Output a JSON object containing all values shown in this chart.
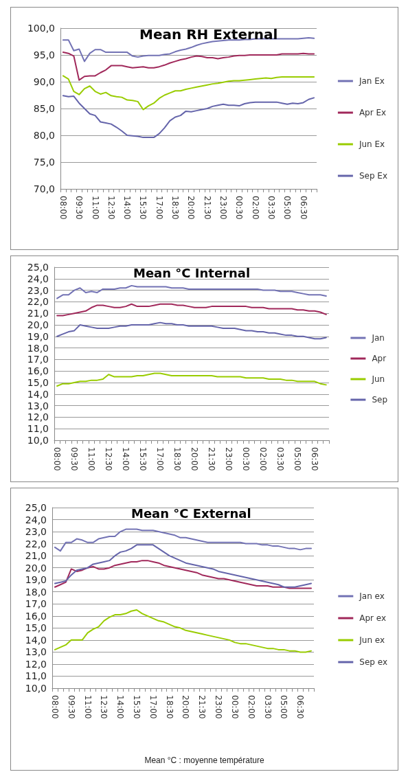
{
  "chart_data": [
    {
      "type": "line",
      "title": "Mean RH External",
      "categories": [
        "08:00",
        null,
        null,
        "09:30",
        null,
        null,
        "11:00",
        null,
        null,
        "12:30",
        null,
        null,
        "14:00",
        null,
        null,
        "15:30",
        null,
        null,
        "17:00",
        null,
        null,
        "18:30",
        null,
        null,
        "20:00",
        null,
        null,
        "21:30",
        null,
        null,
        "23:00",
        null,
        null,
        "00:30",
        null,
        null,
        "02:00",
        null,
        null,
        "03:30",
        null,
        null,
        "05:00",
        null,
        null,
        "06:30",
        null,
        null
      ],
      "series": [
        {
          "name": "Jan Ex",
          "color": "#7272b4",
          "values": [
            97.8,
            97.8,
            95.8,
            96.1,
            93.8,
            95.3,
            96,
            96,
            95.5,
            95.5,
            95.5,
            95.5,
            95.5,
            94.8,
            94.6,
            94.8,
            94.9,
            94.9,
            94.9,
            95.1,
            95.2,
            95.6,
            95.9,
            96.1,
            96.4,
            96.8,
            97.1,
            97.3,
            97.5,
            97.6,
            97.7,
            97.8,
            97.8,
            97.8,
            97.9,
            97.9,
            98,
            98,
            98,
            98,
            98,
            98,
            98,
            98,
            98,
            98.1,
            98.2,
            98.1
          ]
        },
        {
          "name": "Apr Ex",
          "color": "#a0285a",
          "values": [
            95.5,
            95.3,
            94.8,
            90.3,
            91,
            91.1,
            91.1,
            91.7,
            92.2,
            93,
            93,
            93,
            92.8,
            92.6,
            92.7,
            92.8,
            92.6,
            92.6,
            92.8,
            93.1,
            93.5,
            93.8,
            94.1,
            94.3,
            94.6,
            94.8,
            94.7,
            94.5,
            94.5,
            94.3,
            94.5,
            94.6,
            94.8,
            94.9,
            94.9,
            95,
            95,
            95,
            95,
            95,
            95,
            95.2,
            95.2,
            95.2,
            95.2,
            95.3,
            95.2,
            95.2
          ]
        },
        {
          "name": "Jun Ex",
          "color": "#99cc00",
          "values": [
            91.1,
            90.5,
            88.2,
            87.6,
            88.7,
            89.2,
            88.2,
            87.7,
            88,
            87.4,
            87.2,
            87.1,
            86.6,
            86.5,
            86.3,
            84.8,
            85.5,
            86,
            86.9,
            87.5,
            87.9,
            88.3,
            88.3,
            88.6,
            88.8,
            89,
            89.2,
            89.4,
            89.6,
            89.7,
            89.9,
            90.1,
            90.2,
            90.2,
            90.3,
            90.4,
            90.5,
            90.6,
            90.7,
            90.6,
            90.8,
            90.9,
            90.9,
            90.9,
            90.9,
            90.9,
            90.9,
            90.9
          ]
        },
        {
          "name": "Sep Ex",
          "color": "#6464aa",
          "values": [
            87.4,
            87.2,
            87.3,
            86,
            85,
            84,
            83.7,
            82.5,
            82.3,
            82.1,
            81.5,
            80.8,
            80,
            79.9,
            79.8,
            79.6,
            79.6,
            79.6,
            80.3,
            81.4,
            82.7,
            83.4,
            83.7,
            84.5,
            84.4,
            84.6,
            84.8,
            85,
            85.4,
            85.6,
            85.8,
            85.6,
            85.6,
            85.5,
            85.9,
            86.1,
            86.2,
            86.2,
            86.2,
            86.2,
            86.2,
            86,
            85.8,
            86,
            85.9,
            86.1,
            86.7,
            87
          ]
        }
      ],
      "ylim": [
        70,
        100
      ],
      "yticks": [
        {
          "value": 70,
          "label": "70,0"
        },
        {
          "value": 75,
          "label": "75,0"
        },
        {
          "value": 80,
          "label": "80,0"
        },
        {
          "value": 85,
          "label": "85,0"
        },
        {
          "value": 90,
          "label": "90,0"
        },
        {
          "value": 95,
          "label": "95,0"
        },
        {
          "value": 100,
          "label": "100,0"
        }
      ],
      "grid": "y",
      "legend": "right",
      "marker": "none",
      "line_style": "solid"
    },
    {
      "type": "line",
      "title": "Mean °C Internal",
      "categories": [
        "08:00",
        null,
        null,
        "09:30",
        null,
        null,
        "11:00",
        null,
        null,
        "12:30",
        null,
        null,
        "14:00",
        null,
        null,
        "15:30",
        null,
        null,
        "17:00",
        null,
        null,
        "18:30",
        null,
        null,
        "20:00",
        null,
        null,
        "21:30",
        null,
        null,
        "23:00",
        null,
        null,
        "00:30",
        null,
        null,
        "02:00",
        null,
        null,
        "03:30",
        null,
        null,
        "05:00",
        null,
        null,
        "06:30",
        null,
        null
      ],
      "series": [
        {
          "name": "Jan",
          "color": "#7272b4",
          "values": [
            22.3,
            22.6,
            22.6,
            23,
            23.2,
            22.8,
            22.9,
            22.8,
            23.1,
            23.1,
            23.1,
            23.2,
            23.2,
            23.4,
            23.3,
            23.3,
            23.3,
            23.3,
            23.3,
            23.3,
            23.2,
            23.2,
            23.2,
            23.1,
            23.1,
            23.1,
            23.1,
            23.1,
            23.1,
            23.1,
            23.1,
            23.1,
            23.1,
            23.1,
            23.1,
            23.1,
            23,
            23,
            23,
            22.9,
            22.9,
            22.9,
            22.8,
            22.7,
            22.6,
            22.6,
            22.6,
            22.5
          ]
        },
        {
          "name": "Apr",
          "color": "#a0285a",
          "values": [
            20.8,
            20.8,
            20.9,
            21,
            21.1,
            21.2,
            21.5,
            21.7,
            21.7,
            21.6,
            21.5,
            21.5,
            21.6,
            21.8,
            21.6,
            21.6,
            21.6,
            21.7,
            21.8,
            21.8,
            21.8,
            21.7,
            21.7,
            21.6,
            21.5,
            21.5,
            21.5,
            21.6,
            21.6,
            21.6,
            21.6,
            21.6,
            21.6,
            21.6,
            21.5,
            21.5,
            21.5,
            21.4,
            21.4,
            21.4,
            21.4,
            21.4,
            21.3,
            21.3,
            21.2,
            21.2,
            21.1,
            20.9
          ]
        },
        {
          "name": "Jun",
          "color": "#99cc00",
          "values": [
            14.7,
            14.9,
            14.9,
            15,
            15.1,
            15.1,
            15.2,
            15.2,
            15.3,
            15.7,
            15.5,
            15.5,
            15.5,
            15.5,
            15.6,
            15.6,
            15.7,
            15.8,
            15.8,
            15.7,
            15.6,
            15.6,
            15.6,
            15.6,
            15.6,
            15.6,
            15.6,
            15.6,
            15.5,
            15.5,
            15.5,
            15.5,
            15.5,
            15.4,
            15.4,
            15.4,
            15.4,
            15.3,
            15.3,
            15.3,
            15.2,
            15.2,
            15.1,
            15.1,
            15.1,
            15.1,
            14.9,
            14.8
          ]
        },
        {
          "name": "Sep",
          "color": "#6464aa",
          "values": [
            19,
            19.2,
            19.4,
            19.5,
            20,
            19.9,
            19.8,
            19.7,
            19.7,
            19.7,
            19.8,
            19.9,
            19.9,
            20,
            20,
            20,
            20,
            20.1,
            20.2,
            20.1,
            20.1,
            20,
            20,
            19.9,
            19.9,
            19.9,
            19.9,
            19.9,
            19.8,
            19.7,
            19.7,
            19.7,
            19.6,
            19.5,
            19.5,
            19.4,
            19.4,
            19.3,
            19.3,
            19.2,
            19.1,
            19.1,
            19,
            19,
            18.9,
            18.8,
            18.8,
            18.9
          ]
        }
      ],
      "ylim": [
        10,
        25
      ],
      "yticks": [
        {
          "value": 10,
          "label": "10,0"
        },
        {
          "value": 11,
          "label": "11,0"
        },
        {
          "value": 12,
          "label": "12,0"
        },
        {
          "value": 13,
          "label": "13,0"
        },
        {
          "value": 14,
          "label": "14,0"
        },
        {
          "value": 15,
          "label": "15,0"
        },
        {
          "value": 16,
          "label": "16,0"
        },
        {
          "value": 17,
          "label": "17,0"
        },
        {
          "value": 18,
          "label": "18,0"
        },
        {
          "value": 19,
          "label": "19,0"
        },
        {
          "value": 20,
          "label": "20,0"
        },
        {
          "value": 21,
          "label": "21,0"
        },
        {
          "value": 22,
          "label": "22,0"
        },
        {
          "value": 23,
          "label": "23,0"
        },
        {
          "value": 24,
          "label": "24,0"
        },
        {
          "value": 25,
          "label": "25,0"
        }
      ],
      "grid": "y",
      "legend": "right",
      "marker": "none",
      "line_style": "solid"
    },
    {
      "type": "line",
      "title": "Mean °C External",
      "categories": [
        "08:00",
        null,
        null,
        "09:30",
        null,
        null,
        "11:00",
        null,
        null,
        "12:30",
        null,
        null,
        "14:00",
        null,
        null,
        "15:30",
        null,
        null,
        "17:00",
        null,
        null,
        "18:30",
        null,
        null,
        "20:00",
        null,
        null,
        "21:30",
        null,
        null,
        "23:00",
        null,
        null,
        "00:30",
        null,
        null,
        "02:00",
        null,
        null,
        "03:30",
        null,
        null,
        "05:00",
        null,
        null,
        "06:30",
        null,
        null
      ],
      "series": [
        {
          "name": "Jan ex",
          "color": "#7272b4",
          "values": [
            21.7,
            21.4,
            22.1,
            22.1,
            22.4,
            22.3,
            22.1,
            22.1,
            22.4,
            22.5,
            22.6,
            22.6,
            23,
            23.2,
            23.2,
            23.2,
            23.1,
            23.1,
            23.1,
            23,
            22.9,
            22.8,
            22.7,
            22.5,
            22.5,
            22.4,
            22.3,
            22.2,
            22.1,
            22.1,
            22.1,
            22.1,
            22.1,
            22.1,
            22.1,
            22,
            22,
            22,
            21.9,
            21.9,
            21.8,
            21.8,
            21.7,
            21.6,
            21.6,
            21.5,
            21.6,
            21.6
          ]
        },
        {
          "name": "Apr ex",
          "color": "#a0285a",
          "values": [
            18.4,
            18.6,
            18.8,
            19.9,
            19.7,
            19.8,
            20,
            20.1,
            19.9,
            19.9,
            20,
            20.2,
            20.3,
            20.4,
            20.5,
            20.5,
            20.6,
            20.6,
            20.5,
            20.4,
            20.2,
            20.1,
            20,
            19.9,
            19.8,
            19.7,
            19.6,
            19.4,
            19.3,
            19.2,
            19.1,
            19.1,
            19,
            18.9,
            18.8,
            18.7,
            18.6,
            18.5,
            18.5,
            18.5,
            18.4,
            18.4,
            18.4,
            18.3,
            18.3,
            18.3,
            18.3,
            18.3
          ]
        },
        {
          "name": "Jun ex",
          "color": "#99cc00",
          "values": [
            13.2,
            13.4,
            13.6,
            14,
            14,
            14,
            14.6,
            14.9,
            15.1,
            15.6,
            15.9,
            16.1,
            16.1,
            16.2,
            16.4,
            16.5,
            16.2,
            16,
            15.8,
            15.6,
            15.5,
            15.3,
            15.1,
            15,
            14.8,
            14.7,
            14.6,
            14.5,
            14.4,
            14.3,
            14.2,
            14.1,
            14,
            13.8,
            13.7,
            13.7,
            13.6,
            13.5,
            13.4,
            13.3,
            13.3,
            13.2,
            13.2,
            13.1,
            13.1,
            13,
            13,
            13.1
          ]
        },
        {
          "name": "Sep ex",
          "color": "#6464aa",
          "values": [
            18.7,
            18.8,
            18.9,
            19.4,
            19.8,
            19.9,
            20,
            20.3,
            20.4,
            20.5,
            20.6,
            21,
            21.3,
            21.4,
            21.6,
            21.9,
            21.9,
            21.9,
            21.9,
            21.6,
            21.3,
            21,
            20.8,
            20.6,
            20.4,
            20.3,
            20.2,
            20.1,
            20,
            19.9,
            19.7,
            19.6,
            19.5,
            19.4,
            19.3,
            19.2,
            19.1,
            19,
            18.9,
            18.8,
            18.7,
            18.6,
            18.4,
            18.4,
            18.4,
            18.5,
            18.6,
            18.7
          ]
        }
      ],
      "ylim": [
        10,
        25
      ],
      "yticks": [
        {
          "value": 10,
          "label": "10,0"
        },
        {
          "value": 11,
          "label": "11,0"
        },
        {
          "value": 12,
          "label": "12,0"
        },
        {
          "value": 13,
          "label": "13,0"
        },
        {
          "value": 14,
          "label": "14,0"
        },
        {
          "value": 15,
          "label": "15,0"
        },
        {
          "value": 16,
          "label": "16,0"
        },
        {
          "value": 17,
          "label": "17,0"
        },
        {
          "value": 18,
          "label": "18,0"
        },
        {
          "value": 19,
          "label": "19,0"
        },
        {
          "value": 20,
          "label": "20,0"
        },
        {
          "value": 21,
          "label": "21,0"
        },
        {
          "value": 22,
          "label": "22,0"
        },
        {
          "value": 23,
          "label": "23,0"
        },
        {
          "value": 24,
          "label": "24,0"
        },
        {
          "value": 25,
          "label": "25,0"
        }
      ],
      "grid": "y",
      "legend": "right",
      "marker": "none",
      "line_style": "solid",
      "annotations": [
        "Mean °C : moyenne température"
      ]
    }
  ]
}
